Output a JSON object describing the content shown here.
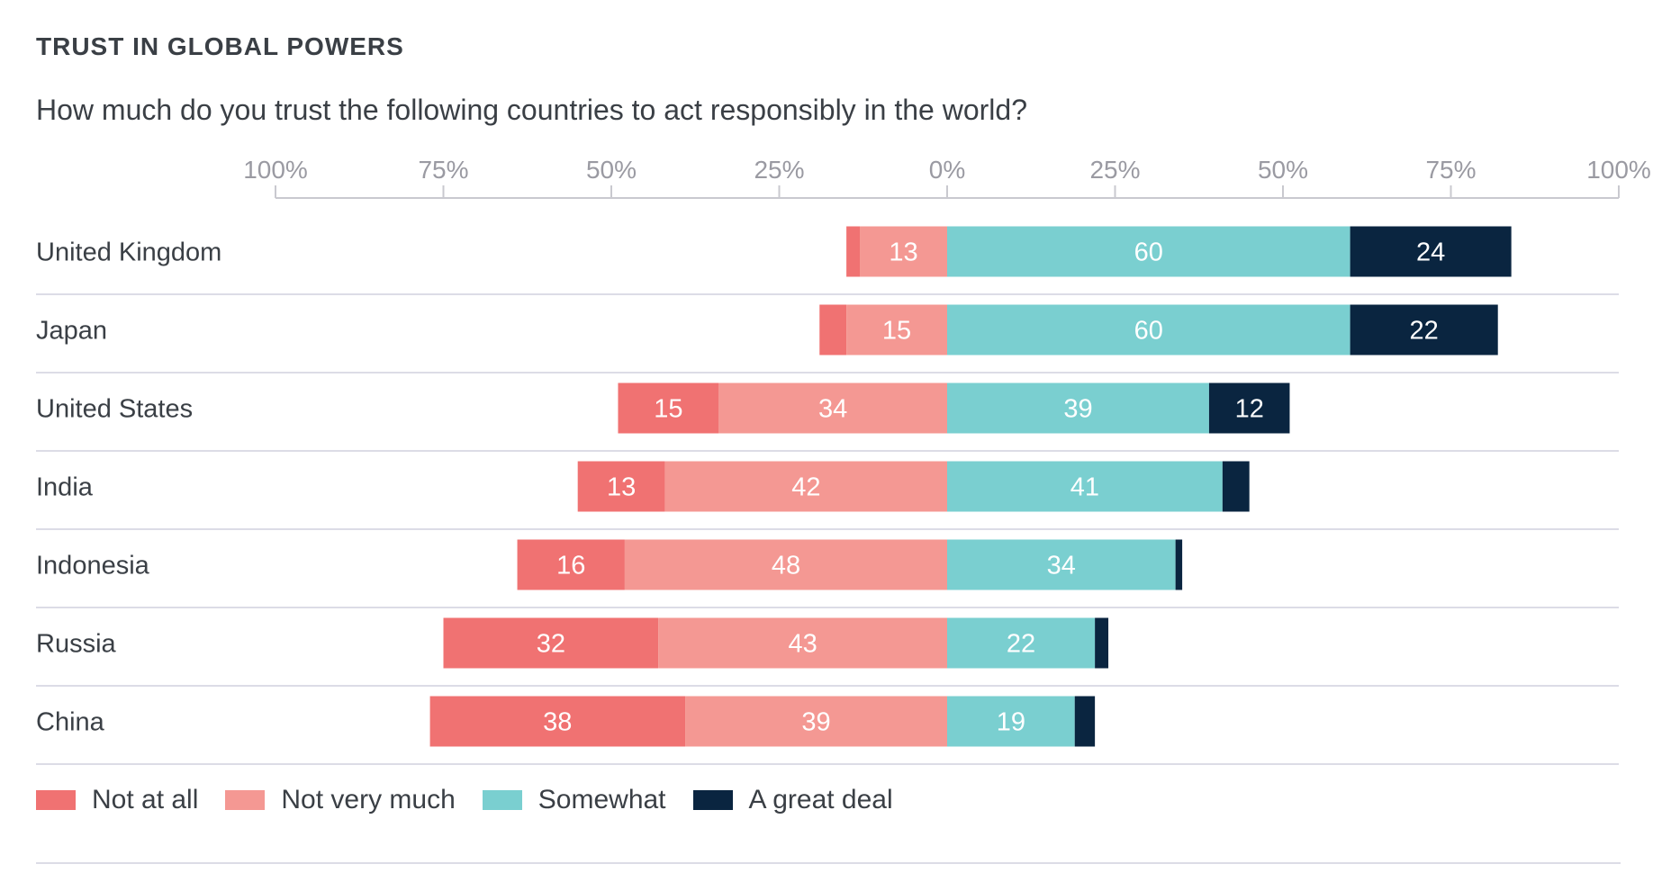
{
  "title": "TRUST IN GLOBAL POWERS",
  "subtitle": "How much do you trust the following countries to act responsibly in the world?",
  "colors": {
    "not_at_all": "#f07272",
    "not_very_much": "#f49893",
    "somewhat": "#7acfd0",
    "great_deal": "#0a2540",
    "axis": "#c9c9cf",
    "grid": "#dcdce6",
    "text": "#3a3f45",
    "tick": "#9a9aa2"
  },
  "legend": [
    {
      "label": "Not at all",
      "color_key": "not_at_all"
    },
    {
      "label": "Not very much",
      "color_key": "not_very_much"
    },
    {
      "label": "Somewhat",
      "color_key": "somewhat"
    },
    {
      "label": "A great deal",
      "color_key": "great_deal"
    }
  ],
  "chart_data": {
    "type": "bar",
    "orientation": "horizontal",
    "stacking": "diverging",
    "title": "TRUST IN GLOBAL POWERS",
    "subtitle": "How much do you trust the following countries to act responsibly in the world?",
    "xlim": [
      -100,
      100
    ],
    "ticks": [
      "100%",
      "75%",
      "50%",
      "25%",
      "0%",
      "25%",
      "50%",
      "75%",
      "100%"
    ],
    "categories": [
      "United Kingdom",
      "Japan",
      "United States",
      "India",
      "Indonesia",
      "Russia",
      "China"
    ],
    "series": [
      {
        "name": "Not at all",
        "side": "negative",
        "values": [
          2,
          4,
          15,
          13,
          16,
          32,
          38
        ],
        "labels": [
          "",
          "",
          "15",
          "13",
          "16",
          "32",
          "38"
        ]
      },
      {
        "name": "Not very much",
        "side": "negative",
        "values": [
          13,
          15,
          34,
          42,
          48,
          43,
          39
        ],
        "labels": [
          "13",
          "15",
          "34",
          "42",
          "48",
          "43",
          "39"
        ]
      },
      {
        "name": "Somewhat",
        "side": "positive",
        "values": [
          60,
          60,
          39,
          41,
          34,
          22,
          19
        ],
        "labels": [
          "60",
          "60",
          "39",
          "41",
          "34",
          "22",
          "19"
        ]
      },
      {
        "name": "A great deal",
        "side": "positive",
        "values": [
          24,
          22,
          12,
          4,
          1,
          2,
          3
        ],
        "labels": [
          "24",
          "22",
          "12",
          "",
          "",
          "",
          ""
        ]
      }
    ],
    "legend_position": "bottom-left",
    "grid": false
  }
}
